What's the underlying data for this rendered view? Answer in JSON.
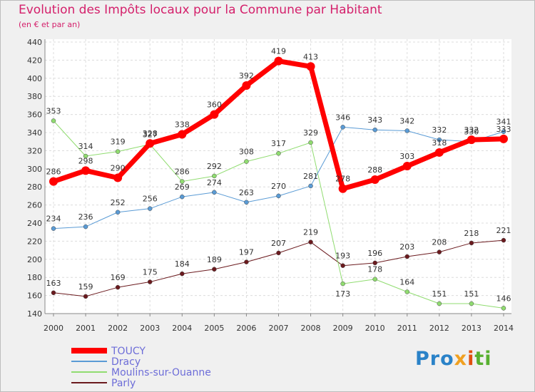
{
  "chart_data": {
    "type": "line",
    "title": "Evolution des Impôts locaux pour la Commune par Habitant",
    "subtitle": "(en € et par an)",
    "xlabel": "",
    "ylabel": "",
    "categories": [
      "2000",
      "2001",
      "2002",
      "2003",
      "2004",
      "2005",
      "2006",
      "2007",
      "2008",
      "2009",
      "2010",
      "2011",
      "2012",
      "2013",
      "2014"
    ],
    "ylim": [
      140,
      440
    ],
    "yticks": [
      140,
      160,
      180,
      200,
      220,
      240,
      260,
      280,
      300,
      320,
      340,
      360,
      380,
      400,
      420,
      440
    ],
    "grid": true,
    "legend_position": "bottom-left",
    "series": [
      {
        "name": "Parly",
        "color": "#6b1a1e",
        "width": 1,
        "values": [
          163,
          159,
          169,
          175,
          184,
          189,
          197,
          207,
          219,
          193,
          196,
          203,
          208,
          218,
          221
        ]
      },
      {
        "name": "Moulins-sur-Ouanne",
        "color": "#90dc70",
        "width": 1,
        "values": [
          353,
          314,
          319,
          327,
          286,
          292,
          308,
          317,
          329,
          173,
          178,
          164,
          151,
          151,
          146
        ]
      },
      {
        "name": "Dracy",
        "color": "#5a9bd5",
        "width": 1,
        "values": [
          234,
          236,
          252,
          256,
          269,
          274,
          263,
          270,
          281,
          346,
          343,
          342,
          332,
          330,
          341
        ]
      },
      {
        "name": "TOUCY",
        "color": "#ff0000",
        "width": 7,
        "values": [
          286,
          298,
          290,
          328,
          338,
          360,
          392,
          419,
          413,
          278,
          288,
          303,
          318,
          332,
          333
        ]
      }
    ],
    "legend_order": [
      "TOUCY",
      "Dracy",
      "Moulins-sur-Ouanne",
      "Parly"
    ]
  },
  "logo": {
    "part1": "Pro",
    "part2": "x",
    "part3": "i",
    "part4": "ti"
  }
}
